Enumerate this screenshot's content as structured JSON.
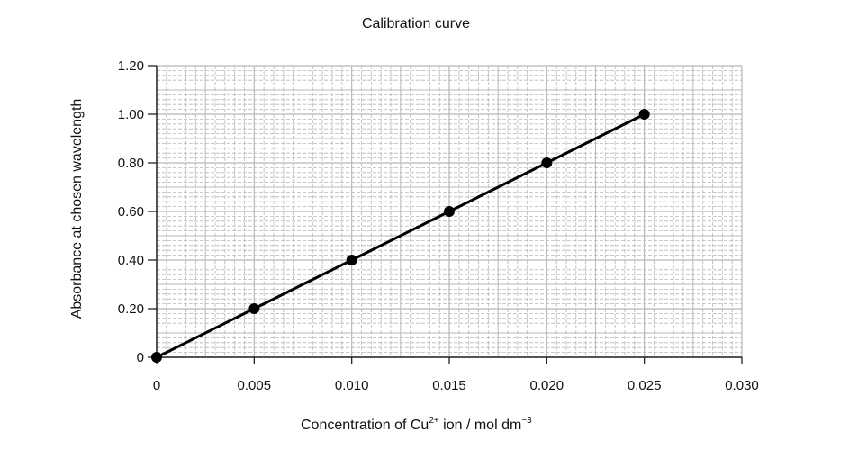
{
  "chart_data": {
    "type": "line",
    "title": "Calibration curve",
    "xlabel_prefix": "Concentration of Cu",
    "xlabel_sup1": "2+",
    "xlabel_mid": " ion / mol dm",
    "xlabel_sup2": "−3",
    "ylabel": "Absorbance at chosen wavelength",
    "xlim": [
      0,
      0.03
    ],
    "ylim": [
      0,
      1.2
    ],
    "x_ticks": [
      "0",
      "0.005",
      "0.010",
      "0.015",
      "0.020",
      "0.025",
      "0.030"
    ],
    "y_ticks": [
      "0",
      "0.20",
      "0.40",
      "0.60",
      "0.80",
      "1.00",
      "1.20"
    ],
    "grid": true,
    "x": [
      0,
      0.005,
      0.01,
      0.015,
      0.02,
      0.025
    ],
    "y": [
      0,
      0.2,
      0.4,
      0.6,
      0.8,
      1.0
    ],
    "colors": {
      "line": "#000000",
      "grid": "#b8b8b8"
    }
  }
}
